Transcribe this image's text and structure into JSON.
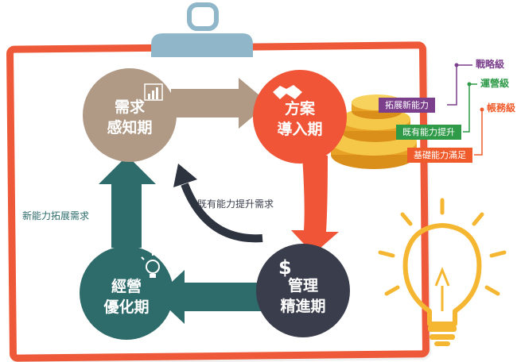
{
  "cycle": {
    "perception": {
      "line1": "需求",
      "line2": "感知期"
    },
    "introduction": {
      "line1": "方案",
      "line2": "導入期"
    },
    "management": {
      "line1": "管理",
      "line2": "精進期"
    },
    "optimization": {
      "line1": "經營",
      "line2": "優化期"
    }
  },
  "labels": {
    "left_arrow": "新能力拓展需求",
    "center_arrow": "既有能力提升需求"
  },
  "coins": {
    "tags": [
      "拓展新能力",
      "既有能力提升",
      "基礎能力滿足"
    ],
    "levels": [
      "戰略級",
      "運營級",
      "帳務級"
    ]
  },
  "colors": {
    "frame": "#ee5a39",
    "clip": "#8fb7c9",
    "perception": "#b09a86",
    "introduction": "#ef5536",
    "management": "#3a3d4b",
    "optimization": "#2e6b6b",
    "gold": "#f2b233",
    "bulb": "#f5b731"
  },
  "icons": [
    "bar-chart-icon",
    "handshake-icon",
    "dollar-icon",
    "lightbulb-icon",
    "coin-stack-icon"
  ]
}
